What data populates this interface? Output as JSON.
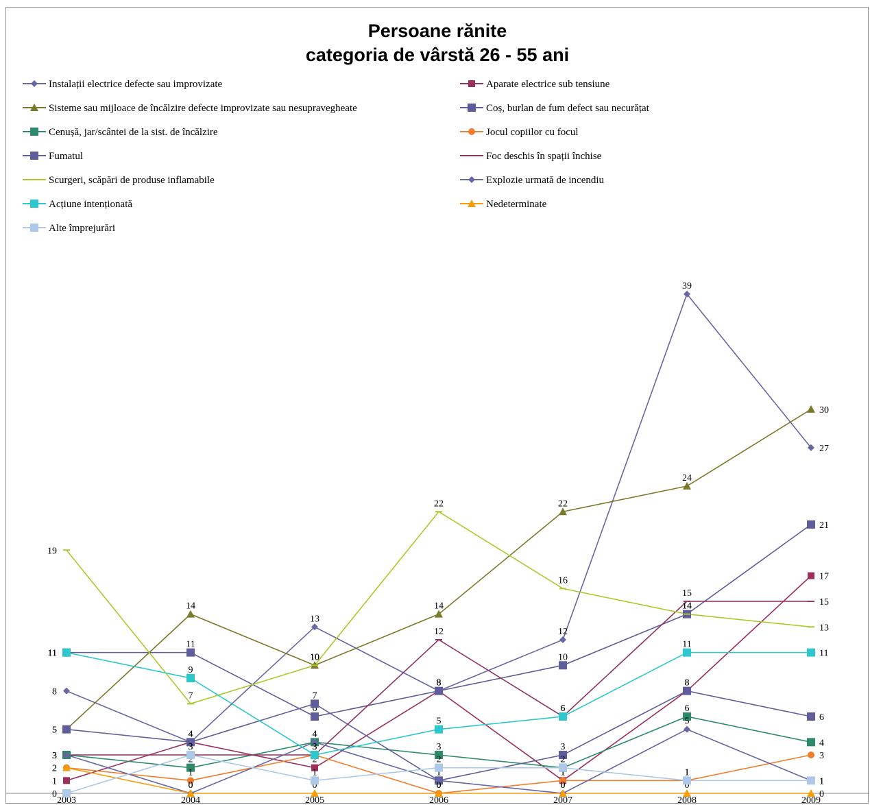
{
  "chart_data": {
    "type": "line",
    "title": [
      "Persoane rănite",
      "categoria de vârstă 26 - 55 ani"
    ],
    "xlabel": "",
    "ylabel": "",
    "x": [
      "2003",
      "2004",
      "2005",
      "2006",
      "2007",
      "2008",
      "2009"
    ],
    "ylim": [
      0,
      40
    ],
    "grid": false,
    "legend_position": "top",
    "series": [
      {
        "name": "Instalații electrice defecte sau improvizate",
        "color": "#6667a3",
        "marker": "diamond",
        "values": [
          8,
          4,
          13,
          8,
          12,
          39,
          27
        ]
      },
      {
        "name": "Aparate electrice sub tensiune",
        "color": "#9c2f5c",
        "marker": "square-small",
        "values": [
          1,
          4,
          2,
          8,
          1,
          8,
          17
        ]
      },
      {
        "name": "Sisteme sau mijloace de încălzire defecte improvizate sau nesupravegheate",
        "color": "#7b7a2c",
        "marker": "triangle",
        "values": [
          5,
          14,
          10,
          14,
          22,
          24,
          30
        ]
      },
      {
        "name": "Coș, burlan de fum defect sau necurățat",
        "color": "#5f5e9a",
        "marker": "square",
        "values": [
          11,
          11,
          6,
          8,
          10,
          14,
          21
        ]
      },
      {
        "name": "Cenușă, jar/scântei de la sist. de încălzire",
        "color": "#2f8a6a",
        "marker": "square",
        "values": [
          3,
          2,
          4,
          3,
          2,
          6,
          4
        ]
      },
      {
        "name": "Jocul copiilor cu focul",
        "color": "#f07e2b",
        "marker": "circle",
        "values": [
          2,
          1,
          3,
          0,
          1,
          1,
          3
        ]
      },
      {
        "name": "Fumatul",
        "color": "#5f5e9a",
        "marker": "square",
        "values": [
          5,
          4,
          7,
          1,
          3,
          8,
          6
        ]
      },
      {
        "name": "Foc deschis în spații închise",
        "color": "#8e3361",
        "marker": "dash",
        "values": [
          3,
          3,
          3,
          12,
          6,
          15,
          15
        ]
      },
      {
        "name": "Scurgeri, scăpări de produse inflamabile",
        "color": "#a8cc2a",
        "marker": "dash",
        "values": [
          19,
          7,
          10,
          22,
          16,
          14,
          13
        ]
      },
      {
        "name": "Explozie urmată de incendiu",
        "color": "#6667a3",
        "marker": "diamond",
        "values": [
          3,
          0,
          4,
          1,
          0,
          5,
          1
        ]
      },
      {
        "name": "Acțiune intenționată",
        "color": "#2ec7cc",
        "marker": "square",
        "values": [
          11,
          9,
          3,
          5,
          6,
          11,
          11
        ]
      },
      {
        "name": "Nedeterminate",
        "color": "#f59e0b",
        "marker": "triangle",
        "values": [
          2,
          0,
          0,
          0,
          0,
          0,
          0
        ]
      },
      {
        "name": "Alte împrejurări",
        "color": "#aec9e8",
        "marker": "square",
        "values": [
          0,
          3,
          1,
          2,
          2,
          1,
          1
        ]
      }
    ]
  }
}
